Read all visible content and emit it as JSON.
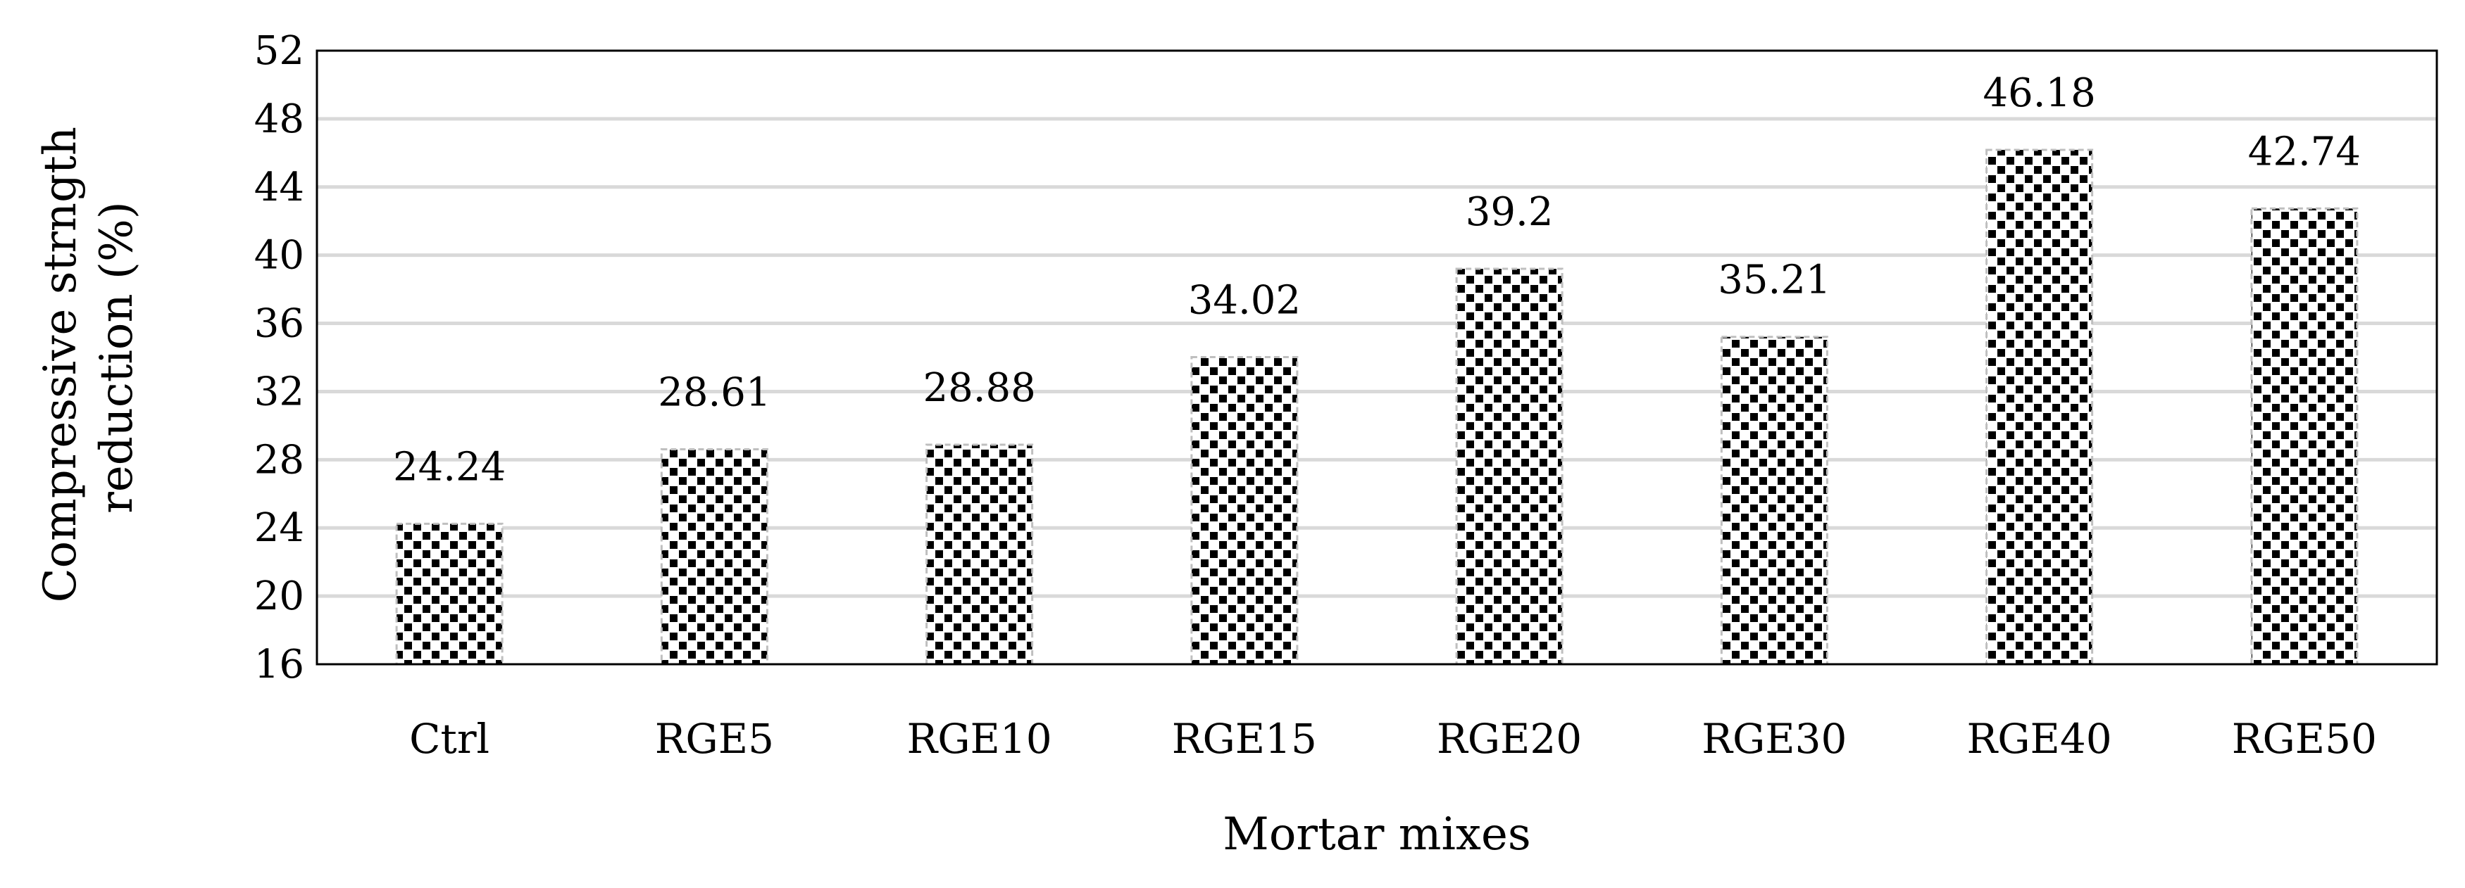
{
  "chart_data": {
    "type": "bar",
    "categories": [
      "Ctrl",
      "RGE5",
      "RGE10",
      "RGE15",
      "RGE20",
      "RGE30",
      "RGE40",
      "RGE50"
    ],
    "values": [
      24.24,
      28.61,
      28.88,
      34.02,
      39.2,
      35.21,
      46.18,
      42.74
    ],
    "data_labels": [
      "24.24",
      "28.61",
      "28.88",
      "34.02",
      "39.2",
      "35.21",
      "46.18",
      "42.74"
    ],
    "yticks": [
      "16",
      "20",
      "24",
      "28",
      "32",
      "36",
      "40",
      "44",
      "48",
      "52"
    ],
    "ylim": [
      16,
      52
    ],
    "xlabel": "Mortar mixes",
    "ylabel_lines": [
      "Compressive strngth",
      "reduction (%)"
    ],
    "grid": "horizontal",
    "bar_pattern": "black squares on white (checker pattern)",
    "colors": {
      "bar_fill": "#000000",
      "gridline": "#d9d9d9",
      "frame": "#000000"
    }
  }
}
